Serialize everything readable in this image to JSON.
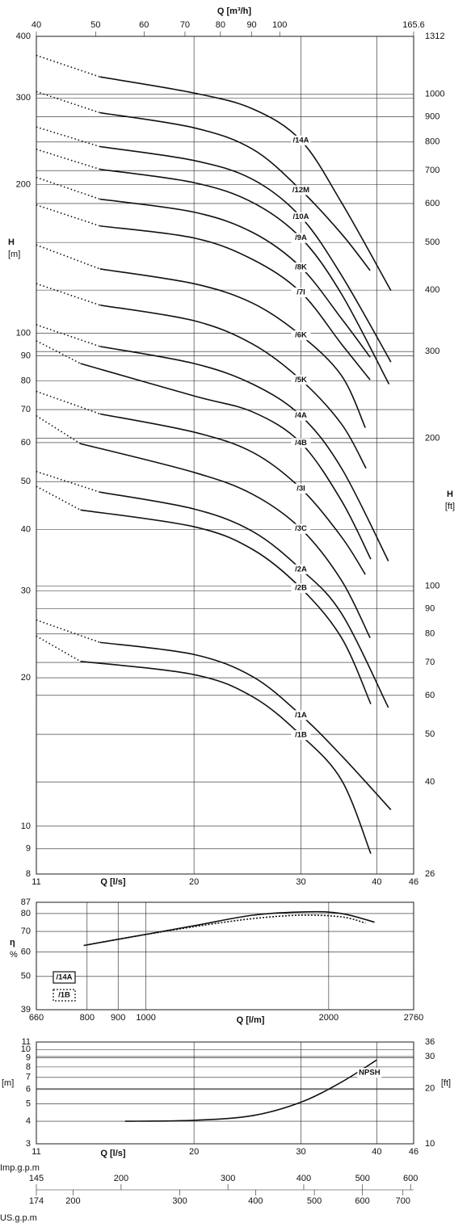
{
  "chart_data": [
    {
      "type": "line",
      "xscale": "log",
      "yscale": "log",
      "grid": true,
      "color": "#111111",
      "x_label": "Q [l/s]",
      "x2_label": "Q [m³/h]",
      "y_label": "H",
      "y_unit": "[m]",
      "y2_label": "H",
      "y2_unit": "[ft]",
      "xlim": [
        11,
        46
      ],
      "xticks": [
        11,
        20,
        30,
        40,
        46
      ],
      "x2lim": [
        40,
        165.6
      ],
      "x2ticks": [
        40,
        50,
        60,
        70,
        80,
        90,
        100,
        165.6
      ],
      "ylim": [
        8,
        400
      ],
      "yticks": [
        8,
        9,
        10,
        20,
        30,
        40,
        50,
        60,
        70,
        80,
        90,
        100,
        200,
        300,
        400
      ],
      "y2lim": [
        26,
        1312
      ],
      "y2ticks": [
        26,
        40,
        50,
        60,
        70,
        80,
        90,
        100,
        200,
        300,
        400,
        500,
        600,
        700,
        800,
        900,
        1000,
        1312
      ],
      "series": [
        {
          "name": "/14A",
          "x": [
            11,
            14,
            20,
            25,
            30,
            35,
            42.2
          ],
          "values": [
            366,
            331,
            307,
            285,
            246,
            184,
            122
          ]
        },
        {
          "name": "/12M",
          "x": [
            11,
            14,
            20,
            25,
            30,
            35,
            39.0
          ],
          "values": [
            309,
            280,
            261,
            236,
            195,
            159,
            134
          ]
        },
        {
          "name": "/10A",
          "x": [
            11,
            14,
            20,
            25,
            30,
            35,
            42.2
          ],
          "values": [
            262,
            239,
            224,
            205,
            172,
            131,
            87.4
          ]
        },
        {
          "name": "/9A",
          "x": [
            11,
            14,
            20,
            25,
            30,
            35,
            41.9
          ],
          "values": [
            236,
            215,
            202,
            184,
            156,
            120,
            78.8
          ]
        },
        {
          "name": "/8K",
          "x": [
            11,
            14,
            20,
            25,
            30,
            35,
            39.0
          ],
          "values": [
            207,
            187,
            176,
            160,
            136,
            107,
            89.4
          ]
        },
        {
          "name": "/7I",
          "x": [
            11,
            14,
            20,
            25,
            30,
            35,
            39.0
          ],
          "values": [
            182,
            165,
            156,
            141,
            121,
            95,
            80.4
          ]
        },
        {
          "name": "/6K",
          "x": [
            11,
            14,
            20,
            25,
            30,
            35,
            38.3
          ],
          "values": [
            151,
            135,
            126,
            115,
            99,
            82,
            64.3
          ]
        },
        {
          "name": "/5K",
          "x": [
            11,
            14,
            20,
            25,
            30,
            35,
            38.4
          ],
          "values": [
            126,
            114,
            106,
            95,
            80.4,
            65.4,
            53.2
          ]
        },
        {
          "name": "/4A",
          "x": [
            11,
            14,
            20,
            25,
            30,
            35,
            41.8
          ],
          "values": [
            104,
            94,
            86.8,
            78.8,
            68,
            53.2,
            34.5
          ]
        },
        {
          "name": "/4B",
          "x": [
            11,
            13,
            20,
            25,
            30,
            35,
            39.1
          ],
          "values": [
            96.5,
            86.8,
            74.6,
            69.2,
            59.9,
            45.7,
            34.8
          ]
        },
        {
          "name": "/3I",
          "x": [
            11,
            14,
            20,
            25,
            30,
            35,
            38.3
          ],
          "values": [
            76.2,
            68.6,
            63,
            57.3,
            48.4,
            38.6,
            32.4
          ]
        },
        {
          "name": "/3C",
          "x": [
            11,
            13,
            20,
            25,
            30,
            35,
            39.0
          ],
          "values": [
            68,
            59.7,
            52.2,
            47.1,
            40.1,
            31.5,
            24.1
          ]
        },
        {
          "name": "/2A",
          "x": [
            11,
            14,
            20,
            25,
            30,
            35,
            41.8
          ],
          "values": [
            52.4,
            47.6,
            44,
            39.6,
            33.2,
            27,
            17.4
          ]
        },
        {
          "name": "/2B",
          "x": [
            11,
            13,
            20,
            25,
            30,
            35,
            39.1
          ],
          "values": [
            48.9,
            43.8,
            40.5,
            36.4,
            30.4,
            24.1,
            17.7
          ]
        },
        {
          "name": "/1A",
          "x": [
            11,
            14,
            20,
            25,
            30,
            35,
            42.2
          ],
          "values": [
            26.2,
            23.6,
            22.3,
            20.1,
            16.8,
            13.9,
            10.8
          ]
        },
        {
          "name": "/1B",
          "x": [
            11,
            13,
            20,
            25,
            30,
            35,
            39.1
          ],
          "values": [
            24.3,
            21.6,
            20.3,
            18.3,
            15.3,
            12.4,
            8.8
          ]
        }
      ]
    },
    {
      "type": "line",
      "xscale": "log",
      "yscale": "log",
      "grid": true,
      "color": "#111111",
      "legend": "lower left",
      "x_label": "Q [l/m]",
      "y_label": "η",
      "y_unit": "%",
      "xlim": [
        660,
        2760
      ],
      "xticks": [
        660,
        800,
        900,
        1000,
        2000,
        2760
      ],
      "ylim": [
        39,
        87
      ],
      "yticks": [
        39,
        50,
        60,
        70,
        80,
        87
      ],
      "series": [
        {
          "name": "/14A",
          "style": "solid",
          "x": [
            790,
            900,
            1200,
            1500,
            1850,
            2100,
            2380
          ],
          "values": [
            63,
            66,
            73,
            79,
            81,
            80,
            75
          ]
        },
        {
          "name": "/1B",
          "style": "dotted",
          "x": [
            790,
            900,
            1200,
            1500,
            1800,
            2100,
            2300
          ],
          "values": [
            63,
            66,
            72.5,
            77,
            79,
            78,
            74.5
          ]
        }
      ]
    },
    {
      "type": "line",
      "xscale": "log",
      "yscale": "log",
      "grid": true,
      "color": "#111111",
      "x_label": "Q [l/s]",
      "y_unit": "[m]",
      "y2_unit": "[ft]",
      "xlim": [
        11,
        46
      ],
      "xticks": [
        11,
        20,
        30,
        40,
        46
      ],
      "ylim": [
        3,
        11
      ],
      "yticks": [
        3,
        4,
        5,
        6,
        7,
        8,
        9,
        10,
        11
      ],
      "y2lim": [
        10,
        36
      ],
      "y2ticks": [
        10,
        20,
        30,
        36
      ],
      "series": [
        {
          "name": "NPSH",
          "style": "solid",
          "x": [
            15.4,
            20,
            25,
            30,
            35,
            40
          ],
          "values": [
            4.0,
            4.05,
            4.3,
            5.1,
            6.6,
            8.75
          ]
        }
      ]
    },
    {
      "type": "scales",
      "xscale": "log",
      "scales": [
        {
          "label": "Imp.g.p.m",
          "lim": [
            145,
            607
          ],
          "ticks": [
            145,
            200,
            300,
            400,
            500,
            600
          ]
        },
        {
          "label": "US.g.p.m",
          "lim": [
            174,
            729
          ],
          "ticks": [
            174,
            200,
            300,
            400,
            500,
            600,
            700
          ]
        }
      ]
    }
  ]
}
